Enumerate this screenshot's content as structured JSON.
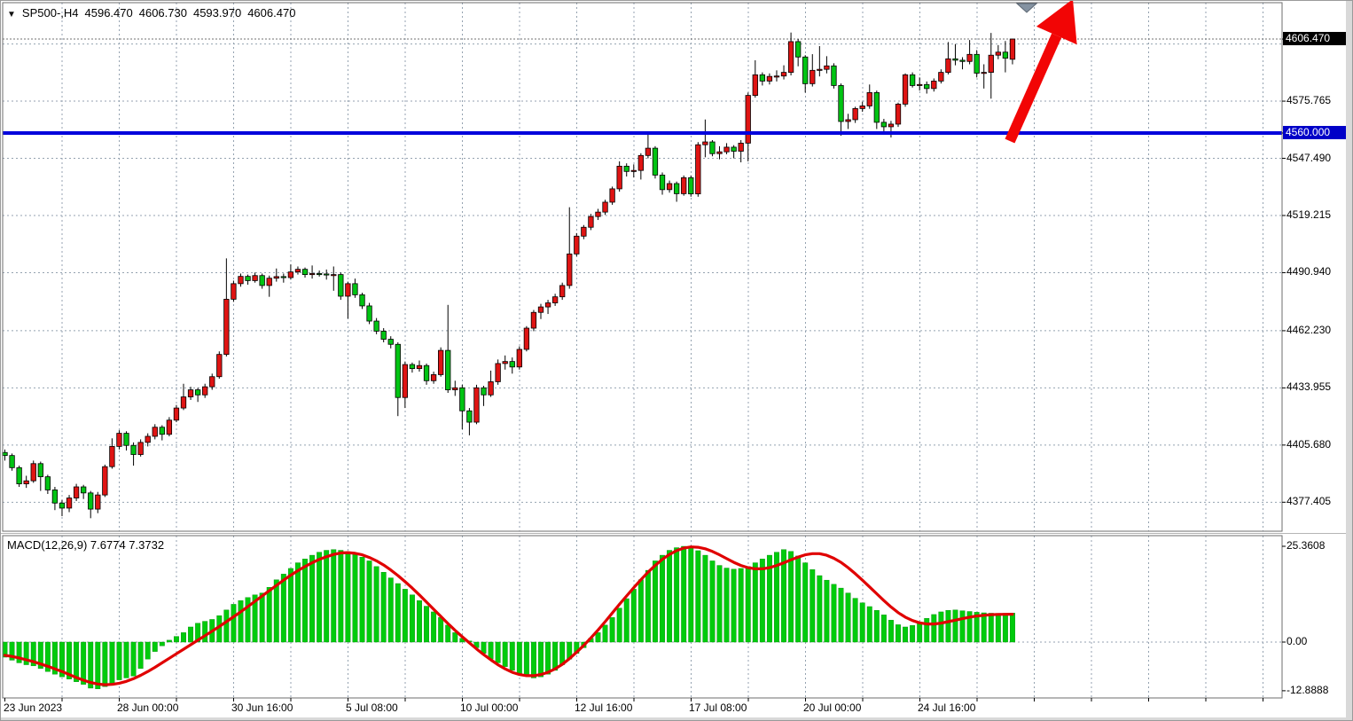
{
  "title": {
    "symbol_period": "SP500-,H4",
    "open": "4596.470",
    "high": "4606.730",
    "low": "4593.970",
    "close": "4606.470"
  },
  "macd_label": "MACD(12,26,9) 7.6774 7.3732",
  "price_axis": {
    "labels": [
      {
        "text": "4606.470",
        "price": 4606.47,
        "type": "last"
      },
      {
        "text": "4575.765",
        "price": 4575.765,
        "type": "grid"
      },
      {
        "text": "4560.000",
        "price": 4560.0,
        "type": "level"
      },
      {
        "text": "4547.490",
        "price": 4547.49,
        "type": "grid"
      },
      {
        "text": "4519.215",
        "price": 4519.215,
        "type": "grid"
      },
      {
        "text": "4490.940",
        "price": 4490.94,
        "type": "grid"
      },
      {
        "text": "4462.230",
        "price": 4462.23,
        "type": "grid"
      },
      {
        "text": "4433.955",
        "price": 4433.955,
        "type": "grid"
      },
      {
        "text": "4405.680",
        "price": 4405.68,
        "type": "grid"
      },
      {
        "text": "4377.405",
        "price": 4377.405,
        "type": "grid"
      }
    ]
  },
  "macd_axis": {
    "labels": [
      {
        "text": "25.3608",
        "value": 25.3608
      },
      {
        "text": "0.00",
        "value": 0
      },
      {
        "text": "-12.8888",
        "value": -12.8888
      }
    ]
  },
  "time_axis": {
    "labels": [
      "23 Jun 2023",
      "28 Jun 00:00",
      "30 Jun 16:00",
      "5 Jul 08:00",
      "10 Jul 00:00",
      "12 Jul 16:00",
      "17 Jul 08:00",
      "20 Jul 00:00",
      "24 Jul 16:00"
    ],
    "bar_step": 16
  },
  "level_line": {
    "price": 4560.0,
    "label": "4560.000"
  },
  "colors": {
    "bull_candle": "#df1413",
    "bear_candle": "#00c413",
    "wick": "#000000",
    "grid": "#94a2b0",
    "macd_histogram": "#00cb0c",
    "macd_signal": "#e00000",
    "level_line": "#0101dc",
    "arrow": "#f20505",
    "last_price_box": "#000000",
    "level_box": "#0000c8",
    "marker": "#8593a2",
    "frame": "#6e6e6e",
    "price_line": "#707070"
  },
  "chart_data": {
    "type": "candlestick",
    "symbol": "SP500-",
    "timeframe": "H4",
    "last_bar": {
      "open": 4596.47,
      "high": 4606.73,
      "low": 4593.97,
      "close": 4606.47
    },
    "price_axis_range": {
      "top": 4624.5,
      "bottom": 4363.5
    },
    "grid_prices": [
      4604.04,
      4575.765,
      4547.49,
      4519.215,
      4490.94,
      4462.23,
      4433.955,
      4405.68,
      4377.405
    ],
    "level_price": 4560.0,
    "x_labels": [
      "23 Jun 2023",
      "28 Jun 00:00",
      "30 Jun 16:00",
      "5 Jul 08:00",
      "10 Jul 00:00",
      "12 Jul 16:00",
      "17 Jul 08:00",
      "20 Jul 00:00",
      "24 Jul 16:00"
    ],
    "x_label_every_n_bars": 16,
    "candles_ohlc": [
      [
        4402,
        4403.5,
        4398,
        4400.5
      ],
      [
        4400.5,
        4401.5,
        4393,
        4394.5
      ],
      [
        4394.5,
        4395.5,
        4385,
        4386.5
      ],
      [
        4386.5,
        4390.5,
        4384.5,
        4388
      ],
      [
        4388,
        4398,
        4387,
        4396.5
      ],
      [
        4396.5,
        4397.5,
        4383,
        4390
      ],
      [
        4390,
        4391,
        4381.5,
        4383.5
      ],
      [
        4383.5,
        4385,
        4373.5,
        4377
      ],
      [
        4377,
        4378.5,
        4370.5,
        4374.5
      ],
      [
        4374.5,
        4381,
        4372.5,
        4379.5
      ],
      [
        4379.5,
        4386.5,
        4378,
        4385
      ],
      [
        4385,
        4386,
        4379,
        4382
      ],
      [
        4382,
        4383,
        4369.5,
        4374
      ],
      [
        4374,
        4382.5,
        4372,
        4381
      ],
      [
        4381,
        4396,
        4380,
        4395
      ],
      [
        4395,
        4409,
        4394,
        4405
      ],
      [
        4405,
        4413,
        4403.5,
        4411.5
      ],
      [
        4411.5,
        4412.5,
        4403,
        4405.5
      ],
      [
        4405.5,
        4407,
        4395.5,
        4401
      ],
      [
        4401,
        4408.5,
        4400,
        4407
      ],
      [
        4407,
        4411.5,
        4405,
        4410
      ],
      [
        4410,
        4416,
        4408.5,
        4414.5
      ],
      [
        4414.5,
        4415.5,
        4408,
        4411
      ],
      [
        4411,
        4419.5,
        4410,
        4418
      ],
      [
        4418,
        4425.5,
        4417,
        4424
      ],
      [
        4424,
        4436,
        4423,
        4429.5
      ],
      [
        4429.5,
        4434.5,
        4428,
        4433
      ],
      [
        4433,
        4434,
        4427,
        4430.5
      ],
      [
        4430.5,
        4436,
        4429,
        4434.5
      ],
      [
        4434.5,
        4441,
        4433,
        4439.5
      ],
      [
        4439.5,
        4452,
        4438.5,
        4450.5
      ],
      [
        4450.5,
        4498,
        4449.5,
        4477.8
      ],
      [
        4477.8,
        4487,
        4476.5,
        4485.5
      ],
      [
        4485.5,
        4490.5,
        4484,
        4489.1
      ],
      [
        4489.1,
        4490,
        4485,
        4487
      ],
      [
        4487,
        4491,
        4486,
        4489.5
      ],
      [
        4489.5,
        4490.5,
        4483,
        4484.6
      ],
      [
        4484.6,
        4489.5,
        4479,
        4488.2
      ],
      [
        4488.2,
        4493,
        4486.5,
        4489
      ],
      [
        4489,
        4490.5,
        4486,
        4488.5
      ],
      [
        4488.5,
        4495,
        4487.5,
        4491.3
      ],
      [
        4491.3,
        4494,
        4490,
        4492.6
      ],
      [
        4492.6,
        4493.5,
        4488.5,
        4490
      ],
      [
        4490,
        4494.5,
        4488,
        4490.5
      ],
      [
        4490.5,
        4492,
        4489,
        4490.3
      ],
      [
        4490.3,
        4492.5,
        4487.5,
        4489.8
      ],
      [
        4489.8,
        4494,
        4482,
        4490
      ],
      [
        4490,
        4491,
        4477.5,
        4479.3
      ],
      [
        4479.3,
        4486.5,
        4468.2,
        4485.5
      ],
      [
        4485.5,
        4488,
        4478.5,
        4480
      ],
      [
        4480,
        4481,
        4473,
        4474.5
      ],
      [
        4474.5,
        4476,
        4465.5,
        4467
      ],
      [
        4467,
        4468.5,
        4460.5,
        4462
      ],
      [
        4462,
        4463.5,
        4456.5,
        4458
      ],
      [
        4458,
        4459.5,
        4453.5,
        4455.5
      ],
      [
        4455.5,
        4456.5,
        4420,
        4429.2
      ],
      [
        4429.2,
        4447,
        4424,
        4445.5
      ],
      [
        4445.5,
        4446.5,
        4441.5,
        4443.5
      ],
      [
        4443.5,
        4447.5,
        4442,
        4445
      ],
      [
        4445,
        4446,
        4435.5,
        4437.5
      ],
      [
        4437.5,
        4442,
        4436,
        4440.5
      ],
      [
        4440.5,
        4454,
        4439.5,
        4452.5
      ],
      [
        4452.5,
        4475,
        4431.5,
        4433
      ],
      [
        4433,
        4437.5,
        4430,
        4434
      ],
      [
        4434,
        4435.5,
        4413.5,
        4422.6
      ],
      [
        4422.6,
        4424,
        4410.5,
        4417
      ],
      [
        4417,
        4435.5,
        4416,
        4434
      ],
      [
        4434,
        4435,
        4425,
        4430.5
      ],
      [
        4430.5,
        4442.5,
        4429.5,
        4437
      ],
      [
        4437,
        4448,
        4435.5,
        4446
      ],
      [
        4446,
        4450,
        4443,
        4447
      ],
      [
        4447,
        4449,
        4441,
        4444.3
      ],
      [
        4444.3,
        4454.5,
        4443,
        4453
      ],
      [
        4453,
        4464.5,
        4452,
        4463.5
      ],
      [
        4463.5,
        4472.5,
        4462,
        4471.3
      ],
      [
        4471.3,
        4475.5,
        4468,
        4474
      ],
      [
        4474,
        4477.5,
        4470.5,
        4476
      ],
      [
        4476,
        4480.5,
        4474.5,
        4479
      ],
      [
        4479,
        4486,
        4477.5,
        4484.6
      ],
      [
        4484.6,
        4523.3,
        4483,
        4500.2
      ],
      [
        4500.2,
        4510.5,
        4499,
        4509
      ],
      [
        4509,
        4514.5,
        4507.5,
        4513.4
      ],
      [
        4513.4,
        4520,
        4512,
        4518.7
      ],
      [
        4518.7,
        4522.5,
        4517,
        4520.9
      ],
      [
        4520.9,
        4527,
        4519.5,
        4525.8
      ],
      [
        4525.8,
        4533.5,
        4524.5,
        4532.4
      ],
      [
        4532.4,
        4546,
        4531,
        4543.6
      ],
      [
        4543.6,
        4545,
        4538.5,
        4541
      ],
      [
        4541,
        4544.5,
        4538,
        4541.5
      ],
      [
        4541.5,
        4550,
        4537,
        4548.9
      ],
      [
        4548.9,
        4559.8,
        4547.5,
        4552.5
      ],
      [
        4552.5,
        4553.5,
        4537.5,
        4539.2
      ],
      [
        4539.2,
        4540.5,
        4529.5,
        4532
      ],
      [
        4532,
        4536.5,
        4530.5,
        4535
      ],
      [
        4535,
        4536,
        4526,
        4530
      ],
      [
        4530,
        4539,
        4529,
        4537.9
      ],
      [
        4537.9,
        4539,
        4528.5,
        4529.9
      ],
      [
        4529.9,
        4555.5,
        4528.5,
        4554.2
      ],
      [
        4554.2,
        4566.7,
        4548,
        4555.6
      ],
      [
        4555.6,
        4556.5,
        4548.5,
        4549.8
      ],
      [
        4549.8,
        4553.5,
        4547,
        4550.7
      ],
      [
        4550.7,
        4555,
        4549.5,
        4553
      ],
      [
        4553,
        4554,
        4547.5,
        4551
      ],
      [
        4551,
        4556.5,
        4545.5,
        4555
      ],
      [
        4555,
        4580,
        4546,
        4578.6
      ],
      [
        4578.6,
        4596,
        4577.5,
        4588.8
      ],
      [
        4588.8,
        4590,
        4583.5,
        4585.7
      ],
      [
        4585.7,
        4589.5,
        4584,
        4588
      ],
      [
        4588,
        4591,
        4585.5,
        4588.2
      ],
      [
        4588.2,
        4593.5,
        4586.5,
        4590
      ],
      [
        4590,
        4609.7,
        4588.5,
        4605.2
      ],
      [
        4605.2,
        4606.5,
        4593,
        4597.6
      ],
      [
        4597.6,
        4598.5,
        4580,
        4584.4
      ],
      [
        4584.4,
        4599,
        4583,
        4591
      ],
      [
        4591,
        4603,
        4588,
        4591.5
      ],
      [
        4591.5,
        4598,
        4589.5,
        4593.2
      ],
      [
        4593.2,
        4594.5,
        4582,
        4583.5
      ],
      [
        4583.5,
        4584.5,
        4558.7,
        4565.7
      ],
      [
        4565.7,
        4569.5,
        4562,
        4566.6
      ],
      [
        4566.6,
        4573,
        4565,
        4572.1
      ],
      [
        4572.1,
        4575.5,
        4570.5,
        4573.4
      ],
      [
        4573.4,
        4584,
        4572,
        4580
      ],
      [
        4580,
        4581,
        4562,
        4565.3
      ],
      [
        4565.3,
        4567,
        4559.3,
        4563.1
      ],
      [
        4563.1,
        4566,
        4557.8,
        4564.4
      ],
      [
        4564.4,
        4575,
        4563,
        4574.3
      ],
      [
        4574.3,
        4589.5,
        4573,
        4588.8
      ],
      [
        4588.8,
        4590,
        4582.5,
        4583.5
      ],
      [
        4583.5,
        4587.5,
        4581,
        4584
      ],
      [
        4584,
        4585.5,
        4579.5,
        4582
      ],
      [
        4582,
        4587,
        4580.5,
        4585.7
      ],
      [
        4585.7,
        4591.5,
        4584.5,
        4590
      ],
      [
        4590,
        4605,
        4589,
        4596.7
      ],
      [
        4596.7,
        4604,
        4593.5,
        4596
      ],
      [
        4596,
        4597.5,
        4591.5,
        4595.4
      ],
      [
        4595.4,
        4606,
        4594,
        4598.9
      ],
      [
        4598.9,
        4601,
        4587.5,
        4589.6
      ],
      [
        4589.6,
        4594,
        4582,
        4590
      ],
      [
        4590,
        4609.5,
        4577,
        4598.5
      ],
      [
        4598.5,
        4603.5,
        4596.5,
        4600
      ],
      [
        4600,
        4605.5,
        4590,
        4597
      ],
      [
        4596.47,
        4606.73,
        4593.97,
        4606.47
      ]
    ],
    "macd": {
      "params": "12,26,9",
      "last_histogram": 7.6774,
      "last_signal": 7.3732,
      "axis_max": 25.3608,
      "axis_min": -12.8888,
      "histogram": [
        -4.0,
        -4.8,
        -5.5,
        -6.0,
        -6.3,
        -7.0,
        -7.8,
        -8.5,
        -9.2,
        -9.8,
        -10.5,
        -11.2,
        -12.2,
        -12.4,
        -11.8,
        -11.0,
        -10.0,
        -9.5,
        -9.0,
        -7.0,
        -4.5,
        -2.5,
        -1.0,
        0.5,
        1.5,
        2.5,
        4.0,
        5.0,
        5.5,
        6.0,
        7.0,
        8.5,
        10.0,
        11.0,
        11.8,
        12.5,
        13.0,
        14.5,
        16.5,
        18.0,
        19.5,
        21.0,
        22.0,
        23.0,
        23.8,
        24.3,
        24.5,
        24.3,
        23.8,
        23.2,
        22.5,
        21.5,
        20.0,
        18.5,
        17.0,
        15.5,
        14.0,
        12.5,
        11.0,
        9.5,
        8.0,
        6.5,
        4.5,
        2.5,
        1.0,
        0.3,
        -1.5,
        -3.0,
        -4.5,
        -5.5,
        -6.5,
        -7.5,
        -8.3,
        -9.0,
        -9.5,
        -9.2,
        -8.5,
        -7.5,
        -6.0,
        -4.5,
        -3.0,
        -1.5,
        1.0,
        2.5,
        4.5,
        6.5,
        9.0,
        11.5,
        14.0,
        16.5,
        19.0,
        21.5,
        23.0,
        24.3,
        25.0,
        25.36,
        25.0,
        24.2,
        23.0,
        21.5,
        20.3,
        19.6,
        19.3,
        19.5,
        20.0,
        21.0,
        22.0,
        23.0,
        23.8,
        24.5,
        24.0,
        22.8,
        21.0,
        19.2,
        17.6,
        16.4,
        15.3,
        14.3,
        13.0,
        11.6,
        10.4,
        9.4,
        8.4,
        7.2,
        5.8,
        4.6,
        4.0,
        4.4,
        5.3,
        6.3,
        7.3,
        8.0,
        8.4,
        8.5,
        8.3,
        8.1,
        7.9,
        7.75,
        7.65,
        7.6,
        7.62,
        7.6774
      ],
      "signal": [
        -3.5,
        -3.8,
        -4.2,
        -4.7,
        -5.2,
        -5.8,
        -6.4,
        -7.1,
        -7.8,
        -8.6,
        -9.4,
        -10.1,
        -10.7,
        -11.1,
        -11.3,
        -11.2,
        -10.9,
        -10.4,
        -9.7,
        -8.8,
        -7.8,
        -6.7,
        -5.5,
        -4.3,
        -3.1,
        -1.9,
        -0.7,
        0.5,
        1.7,
        2.9,
        4.1,
        5.4,
        6.7,
        8.0,
        9.4,
        10.8,
        12.2,
        13.6,
        15.0,
        16.4,
        17.7,
        18.9,
        20.0,
        21.0,
        21.9,
        22.6,
        23.2,
        23.6,
        23.7,
        23.5,
        23.1,
        22.4,
        21.5,
        20.4,
        19.1,
        17.6,
        16.0,
        14.3,
        12.5,
        10.6,
        8.7,
        6.8,
        4.9,
        3.1,
        1.4,
        -0.2,
        -1.8,
        -3.3,
        -4.7,
        -6.0,
        -7.1,
        -8.0,
        -8.6,
        -8.9,
        -8.9,
        -8.6,
        -8.0,
        -7.1,
        -5.9,
        -4.4,
        -2.7,
        -0.9,
        1.1,
        3.2,
        5.4,
        7.7,
        10.0,
        12.2,
        14.4,
        16.5,
        18.5,
        20.3,
        21.9,
        23.2,
        24.2,
        24.9,
        25.2,
        25.1,
        24.7,
        24.0,
        23.1,
        22.1,
        21.1,
        20.3,
        19.7,
        19.4,
        19.4,
        19.7,
        20.3,
        21.0,
        21.8,
        22.5,
        23.1,
        23.4,
        23.4,
        23.0,
        22.2,
        21.1,
        19.7,
        18.1,
        16.4,
        14.6,
        12.8,
        11.0,
        9.3,
        7.8,
        6.6,
        5.7,
        5.1,
        4.8,
        4.8,
        5.0,
        5.4,
        5.8,
        6.2,
        6.6,
        6.9,
        7.1,
        7.25,
        7.32,
        7.35,
        7.3732
      ]
    }
  }
}
